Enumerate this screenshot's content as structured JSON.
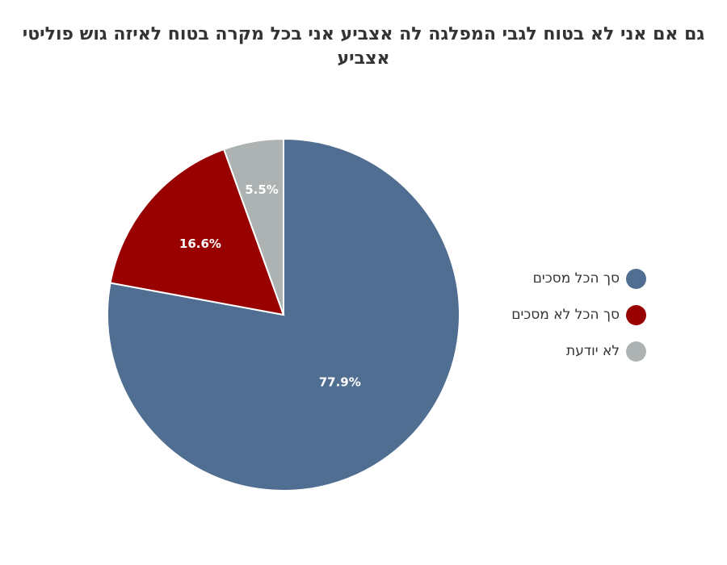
{
  "chart_data": {
    "type": "pie",
    "title": "גם אם אני לא בטוח לגבי המפלגה לה אצביע אני בכל מקרה בטוח לאיזה גוש פוליטי אצביע",
    "categories": [
      "סך הכל מסכים",
      "סך הכל לא מסכים",
      "לא יודעת"
    ],
    "values": [
      77.9,
      16.6,
      5.5
    ],
    "value_labels": [
      "77.9%",
      "16.6%",
      "5.5%"
    ],
    "colors": [
      "#506e91",
      "#990000",
      "#adb2b2"
    ],
    "start_angle": "12 o'clock, clockwise",
    "legend_position": "right"
  }
}
